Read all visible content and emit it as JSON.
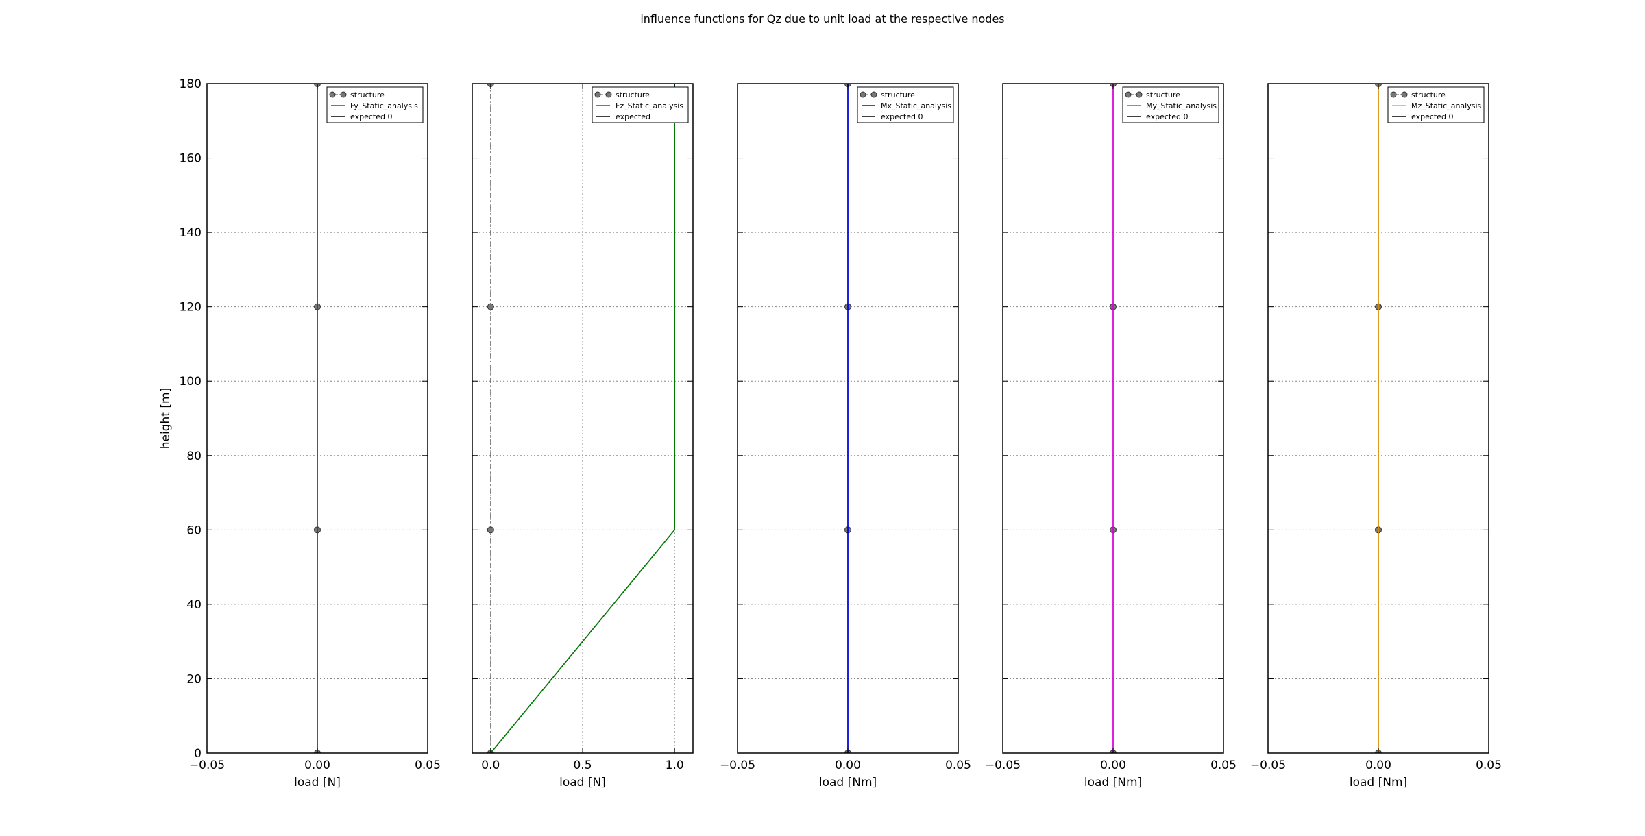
{
  "figure": {
    "title": "influence functions for Qz due to unit load at the respective nodes"
  },
  "chart_data": [
    {
      "type": "line",
      "title": "",
      "xlabel": "load [N]",
      "ylabel": "height [m]",
      "xlim": [
        -0.05,
        0.05
      ],
      "ylim": [
        0,
        180
      ],
      "xticks": [
        -0.05,
        0.0,
        0.05
      ],
      "xtick_labels": [
        "−0.05",
        "0.00",
        "0.05"
      ],
      "yticks": [
        0,
        20,
        40,
        60,
        80,
        100,
        120,
        140,
        160,
        180
      ],
      "ytick_labels": [
        "0",
        "20",
        "40",
        "60",
        "80",
        "100",
        "120",
        "140",
        "160",
        "180"
      ],
      "grid": true,
      "legend_position": "top-right",
      "series": [
        {
          "name": "structure",
          "kind": "structure",
          "color": "#555555",
          "x": [
            0,
            0,
            0,
            0
          ],
          "y": [
            0,
            60,
            120,
            180
          ]
        },
        {
          "name": "Fy_Static_analysis",
          "kind": "line",
          "color": "#ff0000",
          "x": [
            0,
            0,
            0,
            0
          ],
          "y": [
            0,
            60,
            120,
            180
          ]
        },
        {
          "name": "expected 0",
          "kind": "expected",
          "color": "#000000",
          "x": [
            0,
            0,
            0,
            0
          ],
          "y": [
            0,
            60,
            120,
            180
          ]
        }
      ]
    },
    {
      "type": "line",
      "title": "",
      "xlabel": "load [N]",
      "ylabel": "",
      "xlim": [
        -0.1,
        1.1
      ],
      "ylim": [
        0,
        180
      ],
      "xticks": [
        0.0,
        0.5,
        1.0
      ],
      "xtick_labels": [
        "0.0",
        "0.5",
        "1.0"
      ],
      "yticks": [
        0,
        20,
        40,
        60,
        80,
        100,
        120,
        140,
        160,
        180
      ],
      "ytick_labels": [],
      "grid": true,
      "legend_position": "top-right",
      "series": [
        {
          "name": "structure",
          "kind": "structure",
          "color": "#555555",
          "x": [
            0,
            0,
            0,
            0
          ],
          "y": [
            0,
            60,
            120,
            180
          ]
        },
        {
          "name": "Fz_Static_analysis",
          "kind": "line",
          "color": "#008000",
          "x": [
            0,
            1,
            1,
            1
          ],
          "y": [
            0,
            60,
            120,
            180
          ]
        },
        {
          "name": "expected",
          "kind": "expected",
          "color": "#000000",
          "x": [
            0,
            1,
            1,
            1
          ],
          "y": [
            0,
            60,
            120,
            180
          ]
        }
      ]
    },
    {
      "type": "line",
      "title": "",
      "xlabel": "load [Nm]",
      "ylabel": "",
      "xlim": [
        -0.05,
        0.05
      ],
      "ylim": [
        0,
        180
      ],
      "xticks": [
        -0.05,
        0.0,
        0.05
      ],
      "xtick_labels": [
        "−0.05",
        "0.00",
        "0.05"
      ],
      "yticks": [
        0,
        20,
        40,
        60,
        80,
        100,
        120,
        140,
        160,
        180
      ],
      "ytick_labels": [],
      "grid": true,
      "legend_position": "top-right",
      "series": [
        {
          "name": "structure",
          "kind": "structure",
          "color": "#555555",
          "x": [
            0,
            0,
            0,
            0
          ],
          "y": [
            0,
            60,
            120,
            180
          ]
        },
        {
          "name": "Mx_Static_analysis",
          "kind": "line",
          "color": "#0000ff",
          "x": [
            0,
            0,
            0,
            0
          ],
          "y": [
            0,
            60,
            120,
            180
          ]
        },
        {
          "name": "expected 0",
          "kind": "expected",
          "color": "#000000",
          "x": [
            0,
            0,
            0,
            0
          ],
          "y": [
            0,
            60,
            120,
            180
          ]
        }
      ]
    },
    {
      "type": "line",
      "title": "",
      "xlabel": "load [Nm]",
      "ylabel": "",
      "xlim": [
        -0.05,
        0.05
      ],
      "ylim": [
        0,
        180
      ],
      "xticks": [
        -0.05,
        0.0,
        0.05
      ],
      "xtick_labels": [
        "−0.05",
        "0.00",
        "0.05"
      ],
      "yticks": [
        0,
        20,
        40,
        60,
        80,
        100,
        120,
        140,
        160,
        180
      ],
      "ytick_labels": [],
      "grid": true,
      "legend_position": "top-right",
      "series": [
        {
          "name": "structure",
          "kind": "structure",
          "color": "#555555",
          "x": [
            0,
            0,
            0,
            0
          ],
          "y": [
            0,
            60,
            120,
            180
          ]
        },
        {
          "name": "My_Static_analysis",
          "kind": "line",
          "color": "#ff00ff",
          "x": [
            0,
            0,
            0,
            0
          ],
          "y": [
            0,
            60,
            120,
            180
          ]
        },
        {
          "name": "expected 0",
          "kind": "expected",
          "color": "#000000",
          "x": [
            0,
            0,
            0,
            0
          ],
          "y": [
            0,
            60,
            120,
            180
          ]
        }
      ]
    },
    {
      "type": "line",
      "title": "",
      "xlabel": "load [Nm]",
      "ylabel": "",
      "xlim": [
        -0.05,
        0.05
      ],
      "ylim": [
        0,
        180
      ],
      "xticks": [
        -0.05,
        0.0,
        0.05
      ],
      "xtick_labels": [
        "−0.05",
        "0.00",
        "0.05"
      ],
      "yticks": [
        0,
        20,
        40,
        60,
        80,
        100,
        120,
        140,
        160,
        180
      ],
      "ytick_labels": [],
      "grid": true,
      "legend_position": "top-right",
      "series": [
        {
          "name": "structure",
          "kind": "structure",
          "color": "#555555",
          "x": [
            0,
            0,
            0,
            0
          ],
          "y": [
            0,
            60,
            120,
            180
          ]
        },
        {
          "name": "Mz_Static_analysis",
          "kind": "line",
          "color": "#ffa500",
          "x": [
            0,
            0,
            0,
            0
          ],
          "y": [
            0,
            60,
            120,
            180
          ]
        },
        {
          "name": "expected 0",
          "kind": "expected",
          "color": "#000000",
          "x": [
            0,
            0,
            0,
            0
          ],
          "y": [
            0,
            60,
            120,
            180
          ]
        }
      ]
    }
  ]
}
